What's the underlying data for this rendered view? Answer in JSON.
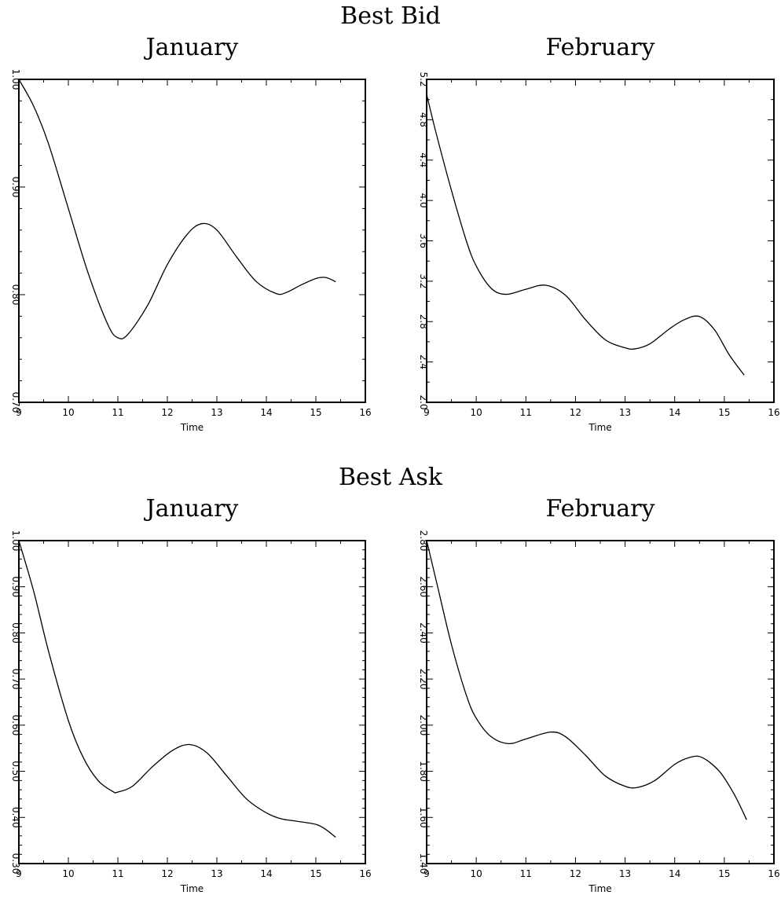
{
  "figure": {
    "sections": [
      {
        "title": "Best Bid"
      },
      {
        "title": "Best Ask"
      }
    ]
  },
  "chart_data": [
    {
      "type": "line",
      "section": "Best Bid",
      "title": "January",
      "xlabel": "Time",
      "ylabel": "",
      "xlim": [
        9,
        16
      ],
      "ylim": [
        0.7,
        1.0
      ],
      "xticks": [
        9,
        10,
        11,
        12,
        13,
        14,
        15,
        16
      ],
      "yticks": [
        0.7,
        0.8,
        0.9,
        1.0
      ],
      "yminor": 0.02,
      "grid": false,
      "x": [
        9.0,
        9.3,
        9.6,
        10.0,
        10.4,
        10.8,
        11.0,
        11.2,
        11.6,
        12.0,
        12.4,
        12.7,
        13.0,
        13.4,
        13.8,
        14.2,
        14.4,
        14.7,
        15.0,
        15.2,
        15.4
      ],
      "y": [
        1.0,
        0.975,
        0.94,
        0.88,
        0.82,
        0.772,
        0.76,
        0.763,
        0.79,
        0.828,
        0.856,
        0.866,
        0.86,
        0.835,
        0.812,
        0.801,
        0.802,
        0.809,
        0.815,
        0.816,
        0.812
      ]
    },
    {
      "type": "line",
      "section": "Best Bid",
      "title": "February",
      "xlabel": "Time",
      "ylabel": "",
      "xlim": [
        9,
        16
      ],
      "ylim": [
        2.0,
        5.2
      ],
      "xticks": [
        9,
        10,
        11,
        12,
        13,
        14,
        15,
        16
      ],
      "yticks": [
        2.0,
        2.4,
        2.8,
        3.2,
        3.6,
        4.0,
        4.4,
        4.8,
        5.2
      ],
      "yminor": 0.2,
      "grid": false,
      "x": [
        9.0,
        9.2,
        9.5,
        9.8,
        10.0,
        10.3,
        10.6,
        11.0,
        11.4,
        11.8,
        12.2,
        12.6,
        13.0,
        13.2,
        13.5,
        13.9,
        14.2,
        14.5,
        14.8,
        15.1,
        15.4
      ],
      "y": [
        5.05,
        4.65,
        4.1,
        3.6,
        3.35,
        3.13,
        3.07,
        3.12,
        3.16,
        3.06,
        2.82,
        2.62,
        2.54,
        2.53,
        2.58,
        2.73,
        2.82,
        2.85,
        2.72,
        2.47,
        2.27
      ]
    },
    {
      "type": "line",
      "section": "Best Ask",
      "title": "January",
      "xlabel": "Time",
      "ylabel": "",
      "xlim": [
        9,
        16
      ],
      "ylim": [
        0.3,
        1.0
      ],
      "xticks": [
        9,
        10,
        11,
        12,
        13,
        14,
        15,
        16
      ],
      "yticks": [
        0.3,
        0.4,
        0.5,
        0.6,
        0.7,
        0.8,
        0.9,
        1.0
      ],
      "yminor": 0.02,
      "grid": false,
      "x": [
        9.0,
        9.3,
        9.6,
        10.0,
        10.3,
        10.6,
        10.9,
        11.0,
        11.3,
        11.7,
        12.1,
        12.45,
        12.8,
        13.2,
        13.6,
        14.0,
        14.3,
        14.6,
        15.0,
        15.2,
        15.4
      ],
      "y": [
        1.0,
        0.89,
        0.76,
        0.61,
        0.53,
        0.48,
        0.456,
        0.455,
        0.468,
        0.51,
        0.545,
        0.558,
        0.54,
        0.49,
        0.44,
        0.41,
        0.397,
        0.392,
        0.385,
        0.374,
        0.357
      ]
    },
    {
      "type": "line",
      "section": "Best Ask",
      "title": "February",
      "xlabel": "Time",
      "ylabel": "",
      "xlim": [
        9,
        16
      ],
      "ylim": [
        1.4,
        2.8
      ],
      "xticks": [
        9,
        10,
        11,
        12,
        13,
        14,
        15,
        16
      ],
      "yticks": [
        1.4,
        1.6,
        1.8,
        2.0,
        2.2,
        2.4,
        2.6,
        2.8
      ],
      "yminor": 0.04,
      "grid": false,
      "x": [
        9.0,
        9.2,
        9.5,
        9.8,
        10.0,
        10.3,
        10.65,
        11.0,
        11.5,
        11.8,
        12.2,
        12.6,
        13.0,
        13.25,
        13.6,
        14.0,
        14.3,
        14.55,
        14.9,
        15.2,
        15.45
      ],
      "y": [
        2.8,
        2.62,
        2.35,
        2.13,
        2.03,
        1.95,
        1.92,
        1.94,
        1.97,
        1.95,
        1.87,
        1.78,
        1.735,
        1.73,
        1.76,
        1.83,
        1.86,
        1.86,
        1.8,
        1.7,
        1.59
      ]
    }
  ]
}
